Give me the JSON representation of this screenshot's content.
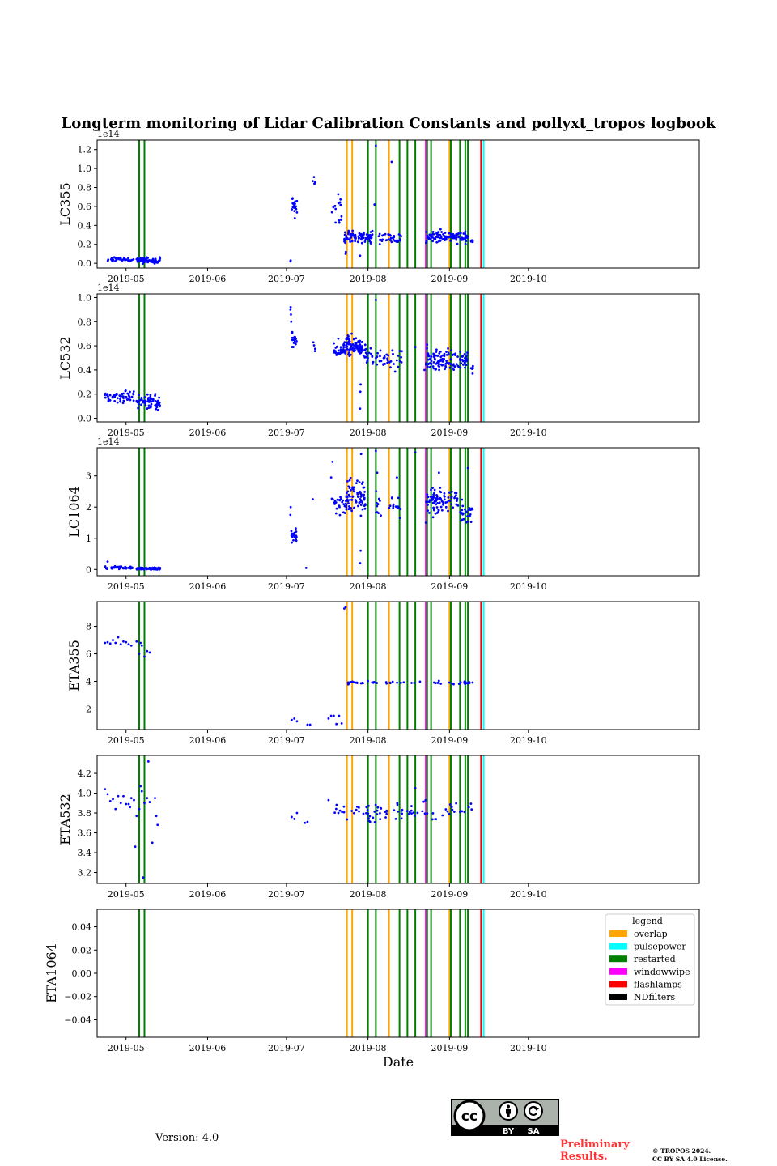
{
  "chart_data": {
    "type": "scatter",
    "title": "Longterm monitoring of Lidar Calibration Constants and pollyxt_tropos logbook",
    "xlabel": "Date",
    "x_domain_days": [
      -41,
      188
    ],
    "x_ticks": [
      {
        "day": -30,
        "label": "2019-05"
      },
      {
        "day": 1,
        "label": "2019-06"
      },
      {
        "day": 31,
        "label": "2019-07"
      },
      {
        "day": 62,
        "label": "2019-08"
      },
      {
        "day": 93,
        "label": "2019-09"
      },
      {
        "day": 123,
        "label": "2019-10"
      }
    ],
    "legend": {
      "title": "legend",
      "position": "upper right (last panel)",
      "entries": [
        {
          "label": "overlap",
          "color": "#ffa500"
        },
        {
          "label": "pulsepower",
          "color": "#00ffff"
        },
        {
          "label": "restarted",
          "color": "#008000"
        },
        {
          "label": "windowwipe",
          "color": "#ff00ff"
        },
        {
          "label": "flashlamps",
          "color": "#ff0000"
        },
        {
          "label": "NDfilters",
          "color": "#000000"
        }
      ]
    },
    "logbook_events": [
      {
        "type": "restarted",
        "day": -25
      },
      {
        "type": "restarted",
        "day": -23
      },
      {
        "type": "overlap",
        "day": 54
      },
      {
        "type": "overlap",
        "day": 56
      },
      {
        "type": "restarted",
        "day": 62
      },
      {
        "type": "restarted",
        "day": 65
      },
      {
        "type": "overlap",
        "day": 70
      },
      {
        "type": "restarted",
        "day": 74
      },
      {
        "type": "restarted",
        "day": 77
      },
      {
        "type": "restarted",
        "day": 80
      },
      {
        "type": "windowwipe",
        "day": 84
      },
      {
        "type": "restarted",
        "day": 84.5
      },
      {
        "type": "restarted",
        "day": 86
      },
      {
        "type": "overlap",
        "day": 93
      },
      {
        "type": "restarted",
        "day": 93.5
      },
      {
        "type": "restarted",
        "day": 97
      },
      {
        "type": "restarted",
        "day": 99
      },
      {
        "type": "restarted",
        "day": 100
      },
      {
        "type": "flashlamps",
        "day": 105
      },
      {
        "type": "pulsepower",
        "day": 106
      }
    ],
    "panels": [
      {
        "ylabel": "LC355",
        "offset_text": "1e14",
        "ylim": [
          -0.05,
          1.3
        ],
        "yticks": [
          {
            "v": 0.0,
            "label": "0.0"
          },
          {
            "v": 0.2,
            "label": "0.2"
          },
          {
            "v": 0.4,
            "label": "0.4"
          },
          {
            "v": 0.6,
            "label": "0.6"
          },
          {
            "v": 0.8,
            "label": "0.8"
          },
          {
            "v": 1.0,
            "label": "1.0"
          },
          {
            "v": 1.2,
            "label": "1.2"
          }
        ],
        "clusters": [
          {
            "d0": -38,
            "d1": -27,
            "mean": 0.04,
            "spread": 0.01,
            "n": 40
          },
          {
            "d0": -26,
            "d1": -17,
            "mean": 0.03,
            "spread": 0.015,
            "n": 60
          },
          {
            "d0": 33,
            "d1": 35,
            "mean": 0.6,
            "spread": 0.06,
            "n": 18
          },
          {
            "d0": 41,
            "d1": 42,
            "mean": 0.84,
            "spread": 0.03,
            "n": 4
          },
          {
            "d0": 48,
            "d1": 52,
            "mean": 0.55,
            "spread": 0.12,
            "n": 15
          },
          {
            "d0": 53,
            "d1": 64,
            "mean": 0.28,
            "spread": 0.03,
            "n": 80
          },
          {
            "d0": 66,
            "d1": 75,
            "mean": 0.27,
            "spread": 0.03,
            "n": 35
          },
          {
            "d0": 84,
            "d1": 100,
            "mean": 0.28,
            "spread": 0.03,
            "n": 110
          },
          {
            "d0": 101,
            "d1": 102,
            "mean": 0.23,
            "spread": 0.01,
            "n": 6
          }
        ],
        "points": [
          [
            32.5,
            0.02
          ],
          [
            32.6,
            0.03
          ],
          [
            53.5,
            0.1
          ],
          [
            53.6,
            0.12
          ],
          [
            59,
            0.08
          ],
          [
            65,
            1.24
          ],
          [
            64.5,
            0.62
          ],
          [
            71,
            1.07
          ]
        ]
      },
      {
        "ylabel": "LC532",
        "offset_text": "1e14",
        "ylim": [
          -0.03,
          1.03
        ],
        "yticks": [
          {
            "v": 0.0,
            "label": "0.0"
          },
          {
            "v": 0.2,
            "label": "0.2"
          },
          {
            "v": 0.4,
            "label": "0.4"
          },
          {
            "v": 0.6,
            "label": "0.6"
          },
          {
            "v": 0.8,
            "label": "0.8"
          },
          {
            "v": 1.0,
            "label": "1.0"
          }
        ],
        "clusters": [
          {
            "d0": -38,
            "d1": -27,
            "mean": 0.18,
            "spread": 0.025,
            "n": 55
          },
          {
            "d0": -26,
            "d1": -17,
            "mean": 0.13,
            "spread": 0.03,
            "n": 70
          },
          {
            "d0": 33,
            "d1": 35,
            "mean": 0.64,
            "spread": 0.035,
            "n": 20
          },
          {
            "d0": 41,
            "d1": 42,
            "mean": 0.58,
            "spread": 0.02,
            "n": 4
          },
          {
            "d0": 49,
            "d1": 53,
            "mean": 0.56,
            "spread": 0.04,
            "n": 30
          },
          {
            "d0": 53,
            "d1": 60,
            "mean": 0.6,
            "spread": 0.04,
            "n": 90
          },
          {
            "d0": 60,
            "d1": 64,
            "mean": 0.52,
            "spread": 0.04,
            "n": 20
          },
          {
            "d0": 65,
            "d1": 75,
            "mean": 0.48,
            "spread": 0.04,
            "n": 35
          },
          {
            "d0": 84,
            "d1": 100,
            "mean": 0.48,
            "spread": 0.04,
            "n": 120
          },
          {
            "d0": 101,
            "d1": 102,
            "mean": 0.41,
            "spread": 0.02,
            "n": 6
          }
        ],
        "points": [
          [
            32.5,
            0.9
          ],
          [
            32.6,
            0.92
          ],
          [
            32.7,
            0.86
          ],
          [
            32.8,
            0.8
          ],
          [
            59,
            0.08
          ],
          [
            59.1,
            0.22
          ],
          [
            59.2,
            0.28
          ],
          [
            65,
            0.98
          ],
          [
            80,
            0.59
          ],
          [
            83.5,
            0.4
          ],
          [
            84.5,
            0.61
          ]
        ]
      },
      {
        "ylabel": "LC1064",
        "offset_text": "1e14",
        "ylim": [
          -0.2,
          3.9
        ],
        "yticks": [
          {
            "v": 0,
            "label": "0"
          },
          {
            "v": 1,
            "label": "1"
          },
          {
            "v": 2,
            "label": "2"
          },
          {
            "v": 3,
            "label": "3"
          }
        ],
        "clusters": [
          {
            "d0": -38,
            "d1": -27,
            "mean": 0.06,
            "spread": 0.02,
            "n": 40
          },
          {
            "d0": -26,
            "d1": -17,
            "mean": 0.03,
            "spread": 0.02,
            "n": 70
          },
          {
            "d0": 32.5,
            "d1": 35,
            "mean": 1.1,
            "spread": 0.15,
            "n": 16
          },
          {
            "d0": 48,
            "d1": 54,
            "mean": 2.15,
            "spread": 0.2,
            "n": 30
          },
          {
            "d0": 54,
            "d1": 61,
            "mean": 2.35,
            "spread": 0.3,
            "n": 70
          },
          {
            "d0": 65,
            "d1": 75,
            "mean": 2.05,
            "spread": 0.2,
            "n": 25
          },
          {
            "d0": 84,
            "d1": 96,
            "mean": 2.2,
            "spread": 0.2,
            "n": 90
          },
          {
            "d0": 96,
            "d1": 102,
            "mean": 1.8,
            "spread": 0.15,
            "n": 30
          }
        ],
        "points": [
          [
            -37,
            0.25
          ],
          [
            32.5,
            1.75
          ],
          [
            32.6,
            2.0
          ],
          [
            38.5,
            0.05
          ],
          [
            41,
            2.25
          ],
          [
            48,
            2.95
          ],
          [
            48.5,
            3.45
          ],
          [
            59,
            0.2
          ],
          [
            59.2,
            0.6
          ],
          [
            59.4,
            3.7
          ],
          [
            65,
            3.8
          ],
          [
            65.5,
            3.1
          ],
          [
            73,
            2.95
          ],
          [
            80,
            3.75
          ],
          [
            89,
            3.1
          ],
          [
            100,
            3.25
          ],
          [
            84,
            1.5
          ]
        ]
      },
      {
        "ylabel": "ETA355",
        "offset_text": "",
        "ylim": [
          0.5,
          9.8
        ],
        "yticks": [
          {
            "v": 2,
            "label": "2"
          },
          {
            "v": 4,
            "label": "4"
          },
          {
            "v": 6,
            "label": "6"
          },
          {
            "v": 8,
            "label": "8"
          }
        ],
        "clusters": [
          {
            "d0": 54,
            "d1": 102,
            "mean": 3.9,
            "spread": 0.05,
            "n": 55
          }
        ],
        "points": [
          [
            -38,
            6.8
          ],
          [
            -37,
            6.85
          ],
          [
            -36,
            6.75
          ],
          [
            -35,
            7.0
          ],
          [
            -34,
            6.8
          ],
          [
            -33,
            7.2
          ],
          [
            -32,
            6.7
          ],
          [
            -31,
            6.9
          ],
          [
            -30,
            6.85
          ],
          [
            -29,
            6.7
          ],
          [
            -28,
            6.6
          ],
          [
            -26,
            6.9
          ],
          [
            -25,
            6.0
          ],
          [
            -24,
            6.6
          ],
          [
            -23,
            5.8
          ],
          [
            -22,
            6.2
          ],
          [
            -21,
            6.1
          ],
          [
            -24.5,
            6.8
          ],
          [
            33,
            1.2
          ],
          [
            34,
            1.3
          ],
          [
            35,
            1.1
          ],
          [
            39,
            0.85
          ],
          [
            40,
            0.85
          ],
          [
            47,
            1.3
          ],
          [
            48,
            1.5
          ],
          [
            49,
            1.5
          ],
          [
            50,
            0.9
          ],
          [
            51,
            1.5
          ],
          [
            52,
            0.95
          ],
          [
            53,
            9.3
          ],
          [
            53.5,
            9.4
          ]
        ]
      },
      {
        "ylabel": "ETA532",
        "offset_text": "",
        "ylim": [
          3.09,
          4.38
        ],
        "yticks": [
          {
            "v": 3.2,
            "label": "3.2"
          },
          {
            "v": 3.4,
            "label": "3.4"
          },
          {
            "v": 3.6,
            "label": "3.6"
          },
          {
            "v": 3.8,
            "label": "3.8"
          },
          {
            "v": 4.0,
            "label": "4.0"
          },
          {
            "v": 4.2,
            "label": "4.2"
          }
        ],
        "clusters": [
          {
            "d0": 49,
            "d1": 102,
            "mean": 3.82,
            "spread": 0.045,
            "n": 85
          }
        ],
        "points": [
          [
            -38,
            4.04
          ],
          [
            -37,
            3.99
          ],
          [
            -36,
            3.92
          ],
          [
            -35,
            3.94
          ],
          [
            -34,
            3.84
          ],
          [
            -33,
            3.97
          ],
          [
            -32,
            3.9
          ],
          [
            -31,
            3.97
          ],
          [
            -30,
            3.89
          ],
          [
            -29,
            3.89
          ],
          [
            -28,
            3.95
          ],
          [
            -28.5,
            3.86
          ],
          [
            -27,
            3.93
          ],
          [
            -26.5,
            3.46
          ],
          [
            -26,
            3.77
          ],
          [
            -25,
            3.84
          ],
          [
            -24.5,
            4.07
          ],
          [
            -24,
            4.02
          ],
          [
            -23.5,
            3.15
          ],
          [
            -23,
            3.9
          ],
          [
            -22,
            3.95
          ],
          [
            -21.5,
            4.32
          ],
          [
            -21,
            3.91
          ],
          [
            -20,
            3.5
          ],
          [
            -19,
            3.95
          ],
          [
            -18.5,
            3.77
          ],
          [
            -18,
            3.68
          ],
          [
            33,
            3.76
          ],
          [
            34,
            3.74
          ],
          [
            35,
            3.8
          ],
          [
            38,
            3.7
          ],
          [
            39,
            3.71
          ],
          [
            47,
            3.93
          ],
          [
            80,
            4.05
          ]
        ]
      },
      {
        "ylabel": "ETA1064",
        "offset_text": "",
        "ylim": [
          -0.055,
          0.055
        ],
        "yticks": [
          {
            "v": -0.04,
            "label": "−0.04"
          },
          {
            "v": -0.02,
            "label": "−0.02"
          },
          {
            "v": 0.0,
            "label": "0.00"
          },
          {
            "v": 0.02,
            "label": "0.02"
          },
          {
            "v": 0.04,
            "label": "0.04"
          }
        ],
        "clusters": [],
        "points": []
      }
    ]
  },
  "footer": {
    "version": "Version: 4.0",
    "preliminary_line1": "Preliminary",
    "preliminary_line2": "Results.",
    "copyright_line1": "© TROPOS 2024.",
    "copyright_line2": "CC BY SA 4.0 License.",
    "cc_badge_by": "BY",
    "cc_badge_sa": "SA",
    "cc_badge_cc": "cc"
  },
  "colors": {
    "points": "#0000ff"
  }
}
